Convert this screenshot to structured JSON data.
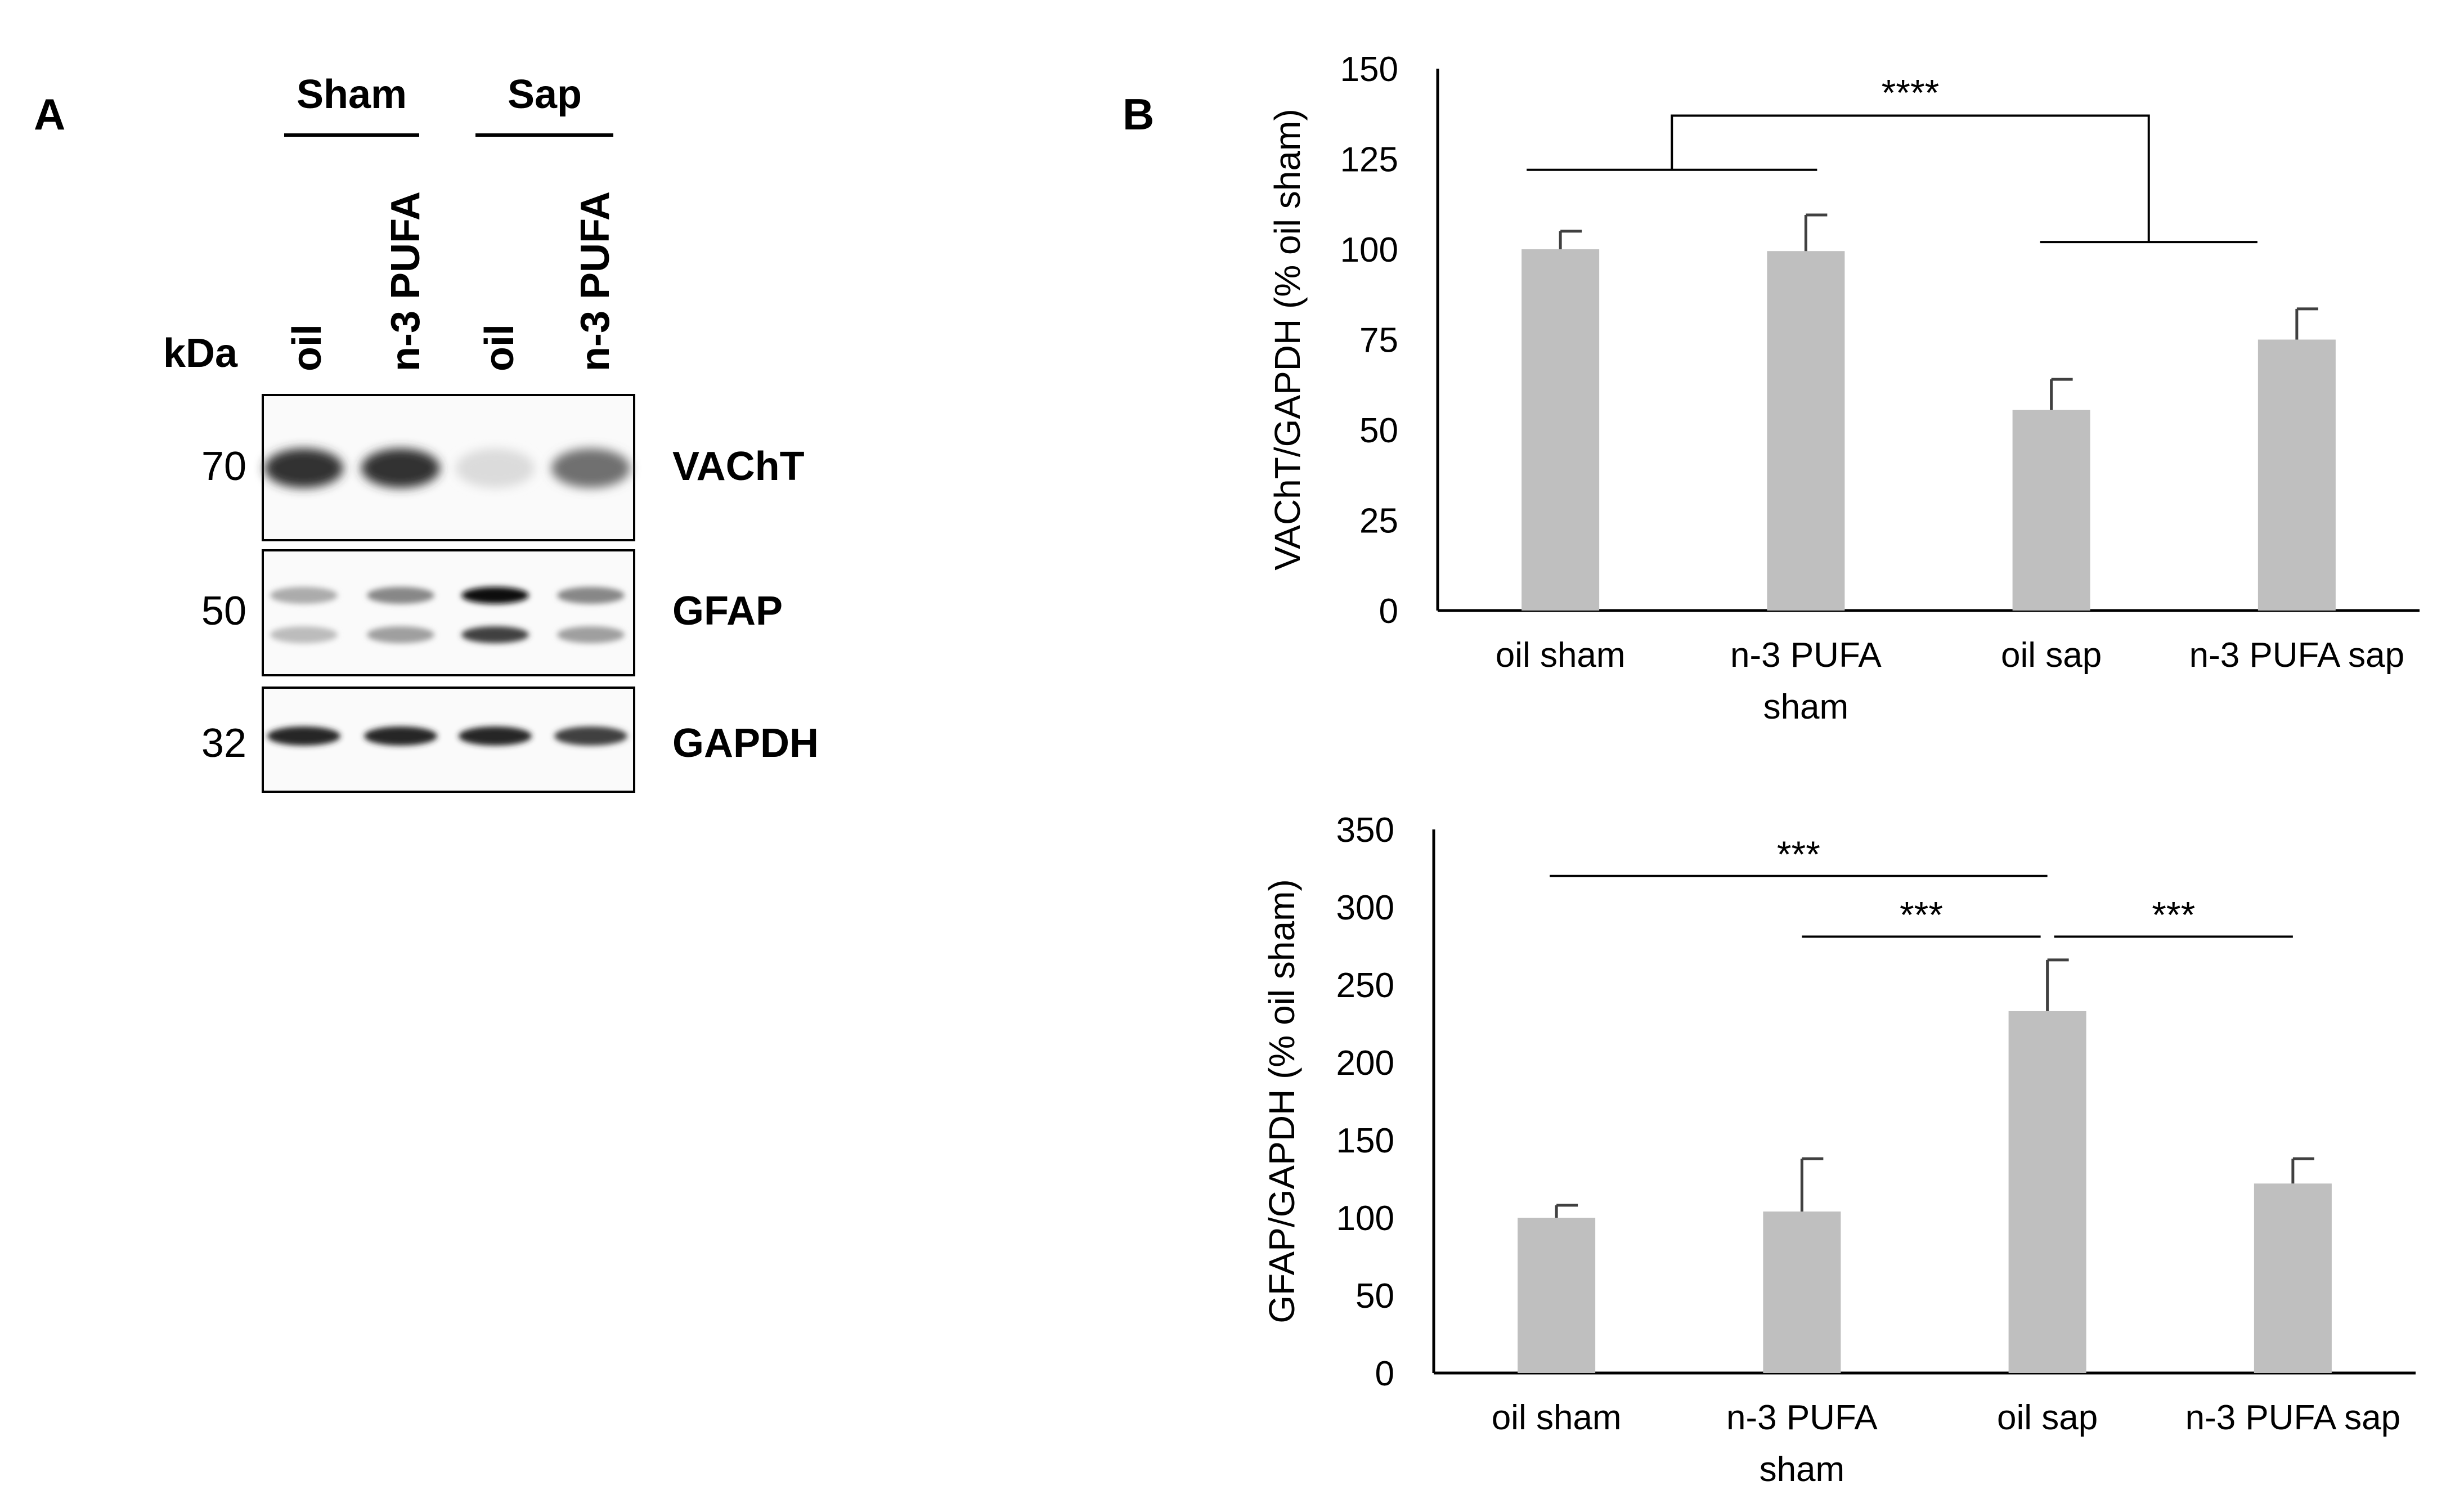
{
  "panel_a": {
    "label": "A",
    "group_labels": [
      "Sham",
      "Sap"
    ],
    "lane_labels": [
      "oil",
      "n-3 PUFA",
      "oil",
      "n-3 PUFA"
    ],
    "kda_label": "kDa",
    "blots": [
      {
        "kda": "70",
        "protein": "VACh T",
        "band_intensity": [
          0.85,
          0.85,
          0.15,
          0.6
        ]
      },
      {
        "kda": "50",
        "protein": "GFAP",
        "band_intensity": [
          0.35,
          0.5,
          1.0,
          0.5
        ]
      },
      {
        "kda": "32",
        "protein": "GAPDH",
        "band_intensity": [
          0.9,
          0.9,
          0.9,
          0.8
        ]
      }
    ]
  },
  "panel_b": {
    "label": "B"
  },
  "colors": {
    "bar": "#bfbfbf",
    "error": "#404040",
    "axis": "#000000"
  },
  "chart_data": [
    {
      "type": "bar",
      "categories": [
        "oil sham",
        "n-3 PUFA sham",
        "oil sap",
        "n-3 PUFA sap"
      ],
      "category_lines": [
        [
          "oil sham"
        ],
        [
          "n-3 PUFA",
          "sham"
        ],
        [
          "oil sap"
        ],
        [
          "n-3 PUFA sap"
        ]
      ],
      "values": [
        100,
        99.5,
        55.5,
        75
      ],
      "errors": [
        5,
        10,
        8.5,
        8.5
      ],
      "ylabel": "VAChT/GAPDH (% oil sham)",
      "ylim": [
        0,
        150
      ],
      "yticks": [
        0,
        25,
        50,
        75,
        100,
        125,
        150
      ],
      "grid": false,
      "annotations": [
        {
          "type": "group-bracket",
          "left_group": [
            0,
            1
          ],
          "right_group": [
            2,
            3
          ],
          "left_y": 122,
          "right_y": 102,
          "top_y": 137,
          "label": "****"
        }
      ]
    },
    {
      "type": "bar",
      "categories": [
        "oil sham",
        "n-3 PUFA sham",
        "oil sap",
        "n-3 PUFA sap"
      ],
      "category_lines": [
        [
          "oil sham"
        ],
        [
          "n-3 PUFA",
          "sham"
        ],
        [
          "oil sap"
        ],
        [
          "n-3 PUFA sap"
        ]
      ],
      "values": [
        100,
        104,
        233,
        122
      ],
      "errors": [
        8,
        34,
        33,
        16
      ],
      "ylabel": "GFAP/GAPDH (% oil sham)",
      "ylim": [
        0,
        350
      ],
      "yticks": [
        0,
        50,
        100,
        150,
        200,
        250,
        300,
        350
      ],
      "grid": false,
      "annotations": [
        {
          "type": "line",
          "from": 0,
          "to": 2,
          "y": 320,
          "label": "***"
        },
        {
          "type": "line",
          "from": 1,
          "to": 2,
          "y": 281,
          "label": "***"
        },
        {
          "type": "line",
          "from": 2,
          "to": 3,
          "y": 281,
          "label": "***"
        }
      ]
    }
  ]
}
